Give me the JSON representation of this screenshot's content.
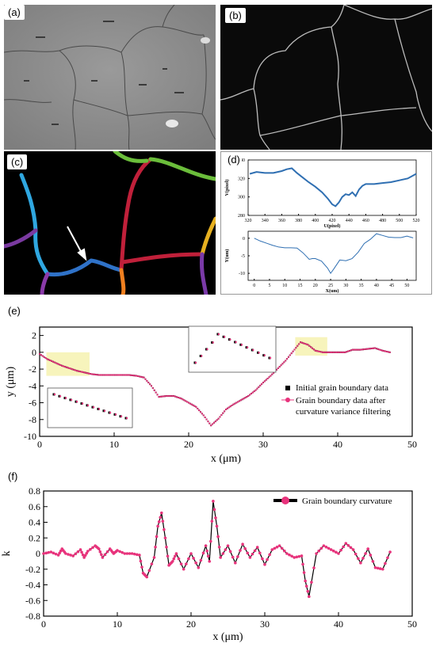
{
  "panels": {
    "a": {
      "label": "(a)"
    },
    "b": {
      "label": "(b)"
    },
    "c": {
      "label": "(c)"
    },
    "d": {
      "label": "(d)"
    },
    "e": {
      "label": "(e)"
    },
    "f": {
      "label": "(f)"
    }
  },
  "chart_data": [
    {
      "id": "d-top",
      "type": "line",
      "xlabel": "U(pixel)",
      "ylabel": "V(pixel)",
      "xlim": [
        320,
        520
      ],
      "ylim": [
        280,
        340
      ],
      "xticks": [
        320,
        340,
        360,
        380,
        400,
        420,
        440,
        460,
        480,
        500,
        520
      ],
      "yticks": [
        280,
        300,
        320,
        340
      ],
      "color": "#2f6fb2",
      "x": [
        322,
        330,
        340,
        350,
        360,
        366,
        372,
        378,
        385,
        392,
        400,
        408,
        415,
        420,
        424,
        428,
        432,
        436,
        440,
        444,
        448,
        452,
        456,
        460,
        470,
        480,
        490,
        500,
        510,
        520
      ],
      "y": [
        325,
        327,
        326,
        326,
        328,
        330,
        331,
        326,
        321,
        316,
        311,
        305,
        298,
        292,
        290,
        294,
        300,
        303,
        302,
        305,
        301,
        308,
        312,
        314,
        314,
        315,
        316,
        318,
        320,
        325
      ]
    },
    {
      "id": "d-bottom",
      "type": "line",
      "xlabel": "X(um)",
      "ylabel": "Y(um)",
      "xlim": [
        -2,
        53
      ],
      "ylim": [
        -12,
        2
      ],
      "xticks": [
        0,
        5,
        10,
        15,
        20,
        25,
        30,
        35,
        40,
        45,
        50
      ],
      "yticks": [
        -10,
        -5,
        0
      ],
      "color": "#2f6fb2",
      "x": [
        0,
        2,
        4,
        6,
        8,
        10,
        12,
        14,
        16,
        18,
        19,
        20,
        22,
        24,
        25,
        26,
        28,
        30,
        32,
        34,
        36,
        38,
        40,
        42,
        44,
        46,
        48,
        50,
        52
      ],
      "y": [
        0,
        -0.8,
        -1.4,
        -2.0,
        -2.5,
        -2.7,
        -2.7,
        -2.8,
        -4.2,
        -6.0,
        -5.8,
        -5.8,
        -6.5,
        -8.5,
        -10.0,
        -8.8,
        -6.2,
        -6.4,
        -5.8,
        -4.0,
        -1.5,
        -0.3,
        1.3,
        0.8,
        0.3,
        0.2,
        0.2,
        0.6,
        0.1
      ]
    },
    {
      "id": "e",
      "type": "scatter",
      "xlabel": "x (μm)",
      "ylabel": "y (μm)",
      "xlim": [
        0,
        50
      ],
      "ylim": [
        -10,
        3
      ],
      "xticks": [
        0,
        10,
        20,
        30,
        40,
        50
      ],
      "yticks": [
        -10,
        -8,
        -6,
        -4,
        -2,
        0,
        2
      ],
      "series": [
        {
          "name": "Initial grain boundary data",
          "color": "#000000",
          "marker": "square"
        },
        {
          "name": "Grain boundary data after curvature variance filtering",
          "color": "#e8337c",
          "marker": "circle"
        }
      ],
      "legend": {
        "position": "lower-right",
        "lines": [
          "Initial grain boundary data",
          "Grain boundary data after",
          "curvature variance filtering"
        ]
      },
      "x": [
        0,
        1,
        2,
        3,
        4,
        5,
        6,
        7,
        8,
        9,
        10,
        11,
        12,
        13,
        14,
        15,
        16,
        17,
        18,
        19,
        20,
        21,
        22,
        23,
        24,
        25,
        26,
        27,
        28,
        29,
        30,
        31,
        32,
        33,
        34,
        35,
        36,
        37,
        38,
        39,
        40,
        41,
        42,
        43,
        44,
        45,
        46,
        47
      ],
      "y": [
        -0.2,
        -0.8,
        -1.2,
        -1.6,
        -1.9,
        -2.2,
        -2.4,
        -2.6,
        -2.7,
        -2.7,
        -2.7,
        -2.7,
        -2.7,
        -2.8,
        -3.0,
        -4.0,
        -5.3,
        -5.2,
        -5.2,
        -5.5,
        -6.0,
        -6.5,
        -7.5,
        -8.7,
        -7.9,
        -6.8,
        -6.2,
        -5.7,
        -5.2,
        -4.5,
        -3.6,
        -2.8,
        -1.9,
        -1.0,
        0.1,
        1.2,
        0.9,
        0.2,
        0.0,
        0.0,
        0.0,
        0.0,
        0.3,
        0.3,
        0.4,
        0.5,
        0.2,
        0.0
      ]
    },
    {
      "id": "f",
      "type": "line",
      "xlabel": "x (μm)",
      "ylabel": "k",
      "xlim": [
        0,
        50
      ],
      "ylim": [
        -0.8,
        0.8
      ],
      "xticks": [
        0,
        10,
        20,
        30,
        40,
        50
      ],
      "yticks": [
        -0.8,
        -0.6,
        -0.4,
        -0.2,
        0,
        0.2,
        0.4,
        0.6,
        0.8
      ],
      "series": [
        {
          "name": "Grain boundary curvature",
          "color": "#000000",
          "marker_color": "#e8337c"
        }
      ],
      "legend": {
        "position": "top-right"
      },
      "x": [
        0,
        1,
        2,
        2.5,
        3,
        4,
        5,
        5.5,
        6,
        7,
        7.5,
        8,
        9,
        9.5,
        10,
        11,
        12,
        13,
        13.5,
        14,
        15,
        15.5,
        16,
        16.5,
        17,
        17.5,
        18,
        19,
        20,
        21,
        22,
        22.5,
        23,
        23.5,
        24,
        25,
        26,
        27,
        28,
        29,
        30,
        31,
        32,
        33,
        34,
        35,
        35.5,
        36,
        37,
        38,
        39,
        40,
        41,
        42,
        43,
        44,
        45,
        46,
        47
      ],
      "y": [
        0.0,
        0.02,
        -0.02,
        0.06,
        0.0,
        -0.03,
        0.05,
        -0.05,
        0.03,
        0.1,
        0.06,
        -0.05,
        0.06,
        0.0,
        0.04,
        0.0,
        0.0,
        -0.02,
        -0.25,
        -0.3,
        -0.05,
        0.35,
        0.52,
        0.2,
        -0.15,
        -0.1,
        0.0,
        -0.2,
        0.0,
        -0.18,
        0.1,
        -0.1,
        0.67,
        0.35,
        -0.05,
        0.1,
        -0.12,
        0.12,
        -0.05,
        0.08,
        -0.14,
        0.05,
        0.1,
        0.0,
        -0.05,
        -0.03,
        -0.35,
        -0.55,
        0.0,
        0.1,
        0.05,
        0.0,
        0.13,
        0.05,
        -0.12,
        0.06,
        -0.18,
        -0.2,
        0.02
      ]
    }
  ]
}
